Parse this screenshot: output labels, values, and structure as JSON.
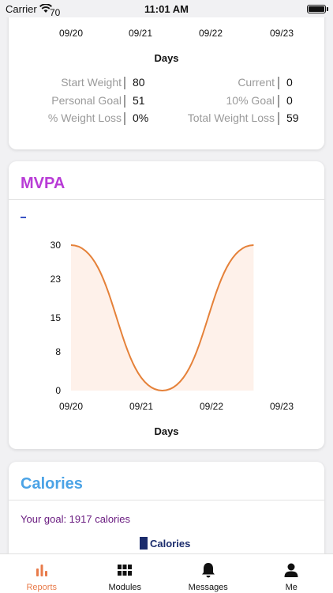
{
  "status_bar": {
    "carrier": "Carrier",
    "signal_number": "70",
    "time": "11:01 AM"
  },
  "weight_card": {
    "x_labels": [
      "09/20",
      "09/21",
      "09/22",
      "09/23"
    ],
    "days_label": "Days",
    "stats": {
      "start_weight_label": "Start Weight",
      "start_weight_value": "80",
      "current_label": "Current",
      "current_value": "0",
      "personal_goal_label": "Personal Goal",
      "personal_goal_value": "51",
      "ten_percent_goal_label": "10% Goal",
      "ten_percent_goal_value": "0",
      "weight_loss_pct_label": "% Weight Loss",
      "weight_loss_pct_value": "0%",
      "total_weight_loss_label": "Total Weight Loss",
      "total_weight_loss_value": "59"
    }
  },
  "mvpa_card": {
    "title": "MVPA",
    "title_color": "#b83bd6",
    "legend_color": "#3a54c4",
    "days_label": "Days"
  },
  "chart_data": {
    "type": "area",
    "x": [
      "09/20",
      "09/21",
      "09/22",
      "09/23"
    ],
    "y_ticks": [
      "0",
      "8",
      "15",
      "23",
      "30"
    ],
    "ylim": [
      0,
      30
    ],
    "xlabel": "Days",
    "ylabel": "",
    "line_color": "#e58139",
    "fill_color": "#fde8dc",
    "curve_points": [
      {
        "x": 0,
        "y": 30
      },
      {
        "x": 1.3,
        "y": 0
      },
      {
        "x": 2.6,
        "y": 30
      }
    ]
  },
  "calories_card": {
    "title": "Calories",
    "title_color": "#4ba3e6",
    "goal_text": "Your goal: 1917 calories",
    "legend_label": "Calories",
    "legend_color": "#1b2c6c"
  },
  "tab_bar": {
    "active_color": "#e87b4a",
    "tabs": [
      {
        "label": "Reports",
        "icon": "bar-chart-icon"
      },
      {
        "label": "Modules",
        "icon": "grid-icon"
      },
      {
        "label": "Messages",
        "icon": "bell-icon"
      },
      {
        "label": "Me",
        "icon": "person-icon"
      }
    ]
  }
}
